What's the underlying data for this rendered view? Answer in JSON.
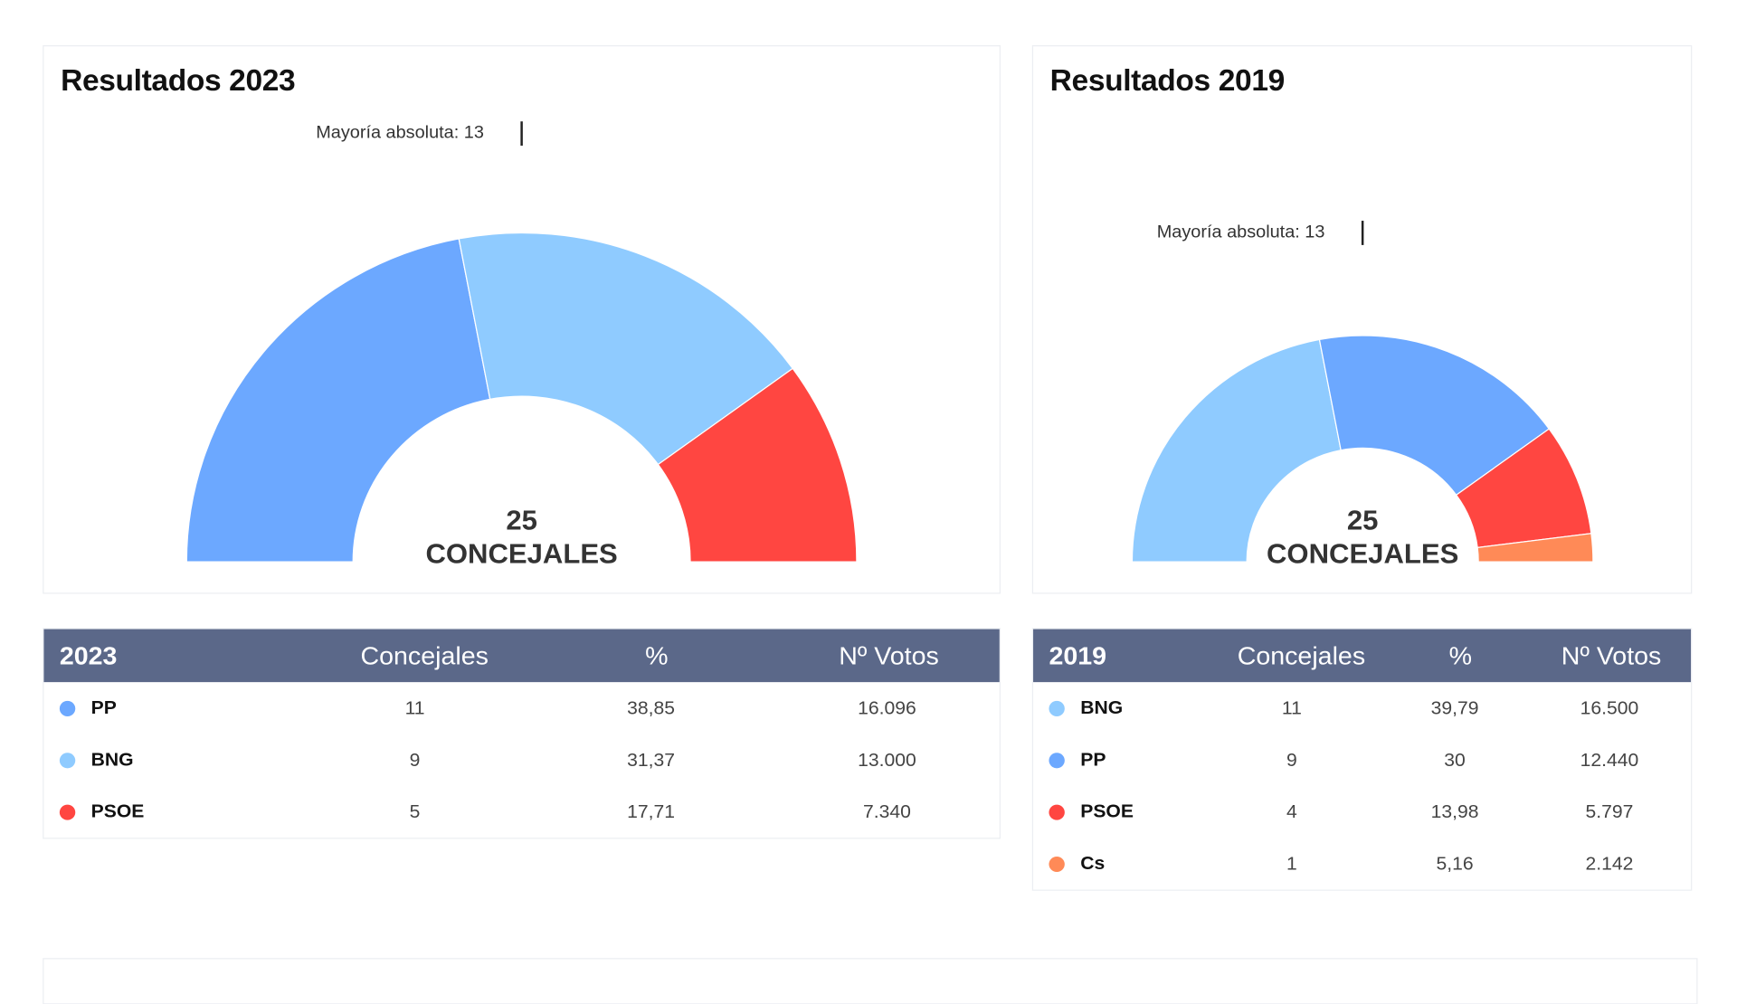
{
  "colors": {
    "PP": "#6ca8ff",
    "BNG": "#8fcbff",
    "PSOE": "#ff4641",
    "Cs": "#ff8a57",
    "table_header": "#5b6889"
  },
  "chart_data": [
    {
      "type": "pie",
      "variant": "semicircle-parliament",
      "title": "Resultados 2023",
      "annotation": "Mayoría absoluta: 13",
      "center_label": {
        "number": "25",
        "text": "CONCEJALES"
      },
      "categories": [
        "PP",
        "BNG",
        "PSOE"
      ],
      "values": [
        11,
        9,
        5
      ]
    },
    {
      "type": "pie",
      "variant": "semicircle-parliament",
      "title": "Resultados 2019",
      "annotation": "Mayoría absoluta: 13",
      "center_label": {
        "number": "25",
        "text": "CONCEJALES"
      },
      "categories": [
        "BNG",
        "PP",
        "PSOE",
        "Cs"
      ],
      "values": [
        11,
        9,
        4,
        1
      ]
    }
  ],
  "tables": [
    {
      "headers": [
        "2023",
        "Concejales",
        "%",
        "Nº Votos"
      ],
      "rows": [
        {
          "party": "PP",
          "seats": "11",
          "pct": "38,85",
          "votes": "16.096"
        },
        {
          "party": "BNG",
          "seats": "9",
          "pct": "31,37",
          "votes": "13.000"
        },
        {
          "party": "PSOE",
          "seats": "5",
          "pct": "17,71",
          "votes": "7.340"
        }
      ]
    },
    {
      "headers": [
        "2019",
        "Concejales",
        "%",
        "Nº Votos"
      ],
      "rows": [
        {
          "party": "BNG",
          "seats": "11",
          "pct": "39,79",
          "votes": "16.500"
        },
        {
          "party": "PP",
          "seats": "9",
          "pct": "30",
          "votes": "12.440"
        },
        {
          "party": "PSOE",
          "seats": "4",
          "pct": "13,98",
          "votes": "5.797"
        },
        {
          "party": "Cs",
          "seats": "1",
          "pct": "5,16",
          "votes": "2.142"
        }
      ]
    }
  ]
}
